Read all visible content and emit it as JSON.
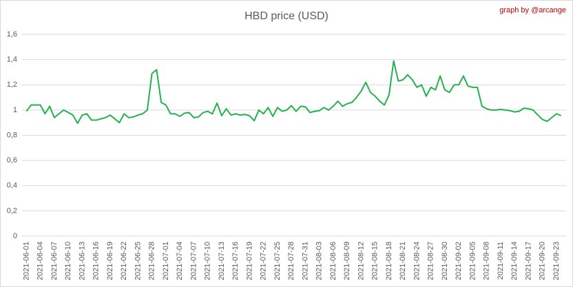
{
  "chart_data": {
    "type": "line",
    "title": "HBD price (USD)",
    "credit": "graph by @arcange",
    "categories": [
      "2021-06-01",
      null,
      null,
      "2021-06-04",
      null,
      null,
      "2021-06-07",
      null,
      null,
      "2021-06-10",
      null,
      null,
      "2021-06-13",
      null,
      null,
      "2021-06-16",
      null,
      null,
      "2021-06-19",
      null,
      null,
      "2021-06-22",
      null,
      null,
      "2021-06-25",
      null,
      null,
      "2021-06-28",
      null,
      null,
      "2021-07-01",
      null,
      null,
      "2021-07-04",
      null,
      null,
      "2021-07-07",
      null,
      null,
      "2021-07-10",
      null,
      null,
      "2021-07-13",
      null,
      null,
      "2021-07-16",
      null,
      null,
      "2021-07-19",
      null,
      null,
      "2021-07-22",
      null,
      null,
      "2021-07-25",
      null,
      null,
      "2021-07-28",
      null,
      null,
      "2021-07-31",
      null,
      null,
      "2021-08-03",
      null,
      null,
      "2021-08-06",
      null,
      null,
      "2021-08-09",
      null,
      null,
      "2021-08-12",
      null,
      null,
      "2021-08-15",
      null,
      null,
      "2021-08-18",
      null,
      null,
      "2021-08-21",
      null,
      null,
      "2021-08-24",
      null,
      null,
      "2021-08-27",
      null,
      null,
      "2021-08-30",
      null,
      null,
      "2021-09-02",
      null,
      null,
      "2021-09-05",
      null,
      null,
      "2021-09-08",
      null,
      null,
      "2021-09-11",
      null,
      null,
      "2021-09-14",
      null,
      null,
      "2021-09-17",
      null,
      null,
      "2021-09-20",
      null,
      null,
      "2021-09-23",
      null
    ],
    "values": [
      0.99,
      1.04,
      1.04,
      1.04,
      0.97,
      1.03,
      0.94,
      0.97,
      1.0,
      0.98,
      0.96,
      0.895,
      0.96,
      0.97,
      0.92,
      0.92,
      0.93,
      0.94,
      0.96,
      0.93,
      0.9,
      0.97,
      0.94,
      0.945,
      0.96,
      0.97,
      1.0,
      1.29,
      1.32,
      1.06,
      1.04,
      0.97,
      0.97,
      0.95,
      0.975,
      0.98,
      0.94,
      0.945,
      0.98,
      0.99,
      0.97,
      1.055,
      0.955,
      1.01,
      0.96,
      0.97,
      0.96,
      0.965,
      0.955,
      0.915,
      1.0,
      0.97,
      1.02,
      0.95,
      1.02,
      0.99,
      1.0,
      1.035,
      0.99,
      1.03,
      1.025,
      0.98,
      0.99,
      0.995,
      1.02,
      1.0,
      1.03,
      1.07,
      1.03,
      1.05,
      1.06,
      1.1,
      1.15,
      1.22,
      1.14,
      1.11,
      1.07,
      1.04,
      1.12,
      1.39,
      1.23,
      1.24,
      1.28,
      1.24,
      1.18,
      1.2,
      1.11,
      1.18,
      1.16,
      1.27,
      1.16,
      1.14,
      1.2,
      1.2,
      1.27,
      1.19,
      1.18,
      1.18,
      1.03,
      1.01,
      1.0,
      1.0,
      1.005,
      1.0,
      0.995,
      0.985,
      0.99,
      1.015,
      1.01,
      1.0,
      0.96,
      0.925,
      0.91,
      0.94,
      0.97,
      0.955
    ],
    "color": "#22b14c",
    "ylim": [
      0,
      1.6
    ],
    "yticks": [
      0,
      {
        "value": 0.2,
        "label": "0,2"
      },
      {
        "value": 0.4,
        "label": "0,4"
      },
      {
        "value": 0.6,
        "label": "0,6"
      },
      {
        "value": 0.8,
        "label": "0,8"
      },
      1,
      {
        "value": 1.2,
        "label": "1,2"
      },
      {
        "value": 1.4,
        "label": "1,4"
      },
      {
        "value": 1.6,
        "label": "1,6"
      }
    ],
    "grid": true
  }
}
